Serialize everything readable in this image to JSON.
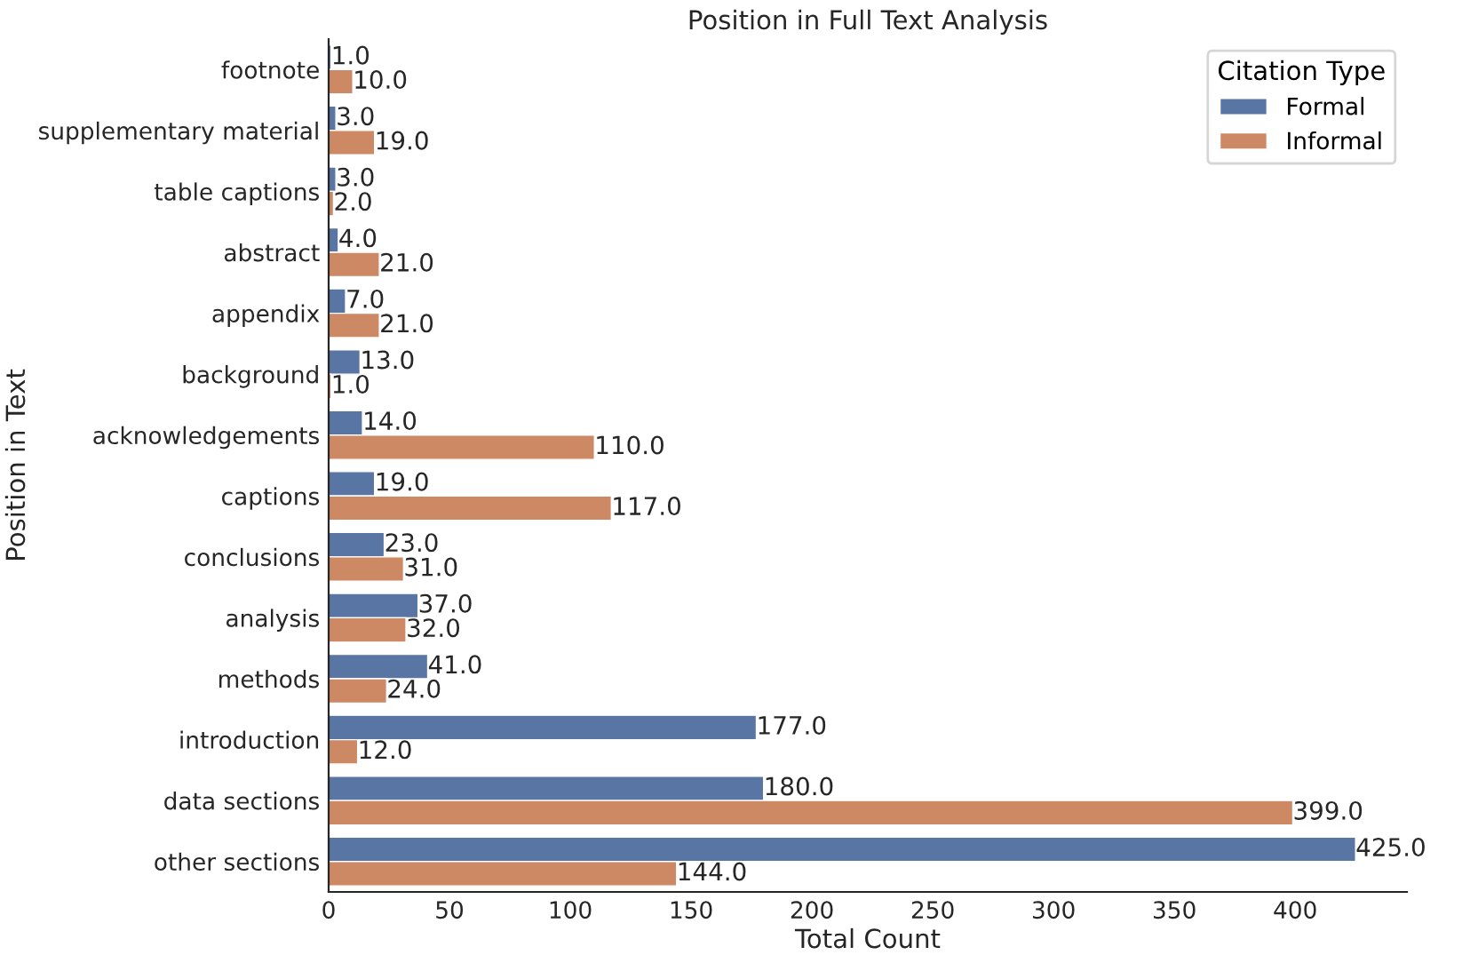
{
  "chart_data": {
    "type": "bar",
    "orientation": "horizontal",
    "title": "Position in Full Text Analysis",
    "xlabel": "Total Count",
    "ylabel": "Position in Text",
    "legend_title": "Citation Type",
    "legend": "top right",
    "grid": false,
    "categories": [
      "footnote",
      "supplementary material",
      "table captions",
      "abstract",
      "appendix",
      "background",
      "acknowledgements",
      "captions",
      "conclusions",
      "analysis",
      "methods",
      "introduction",
      "data sections",
      "other sections"
    ],
    "series": [
      {
        "name": "Formal",
        "color": "#5975a4",
        "values": [
          1,
          3,
          3,
          4,
          7,
          13,
          14,
          19,
          23,
          37,
          41,
          177,
          180,
          425
        ],
        "value_labels": [
          "1.0",
          "3.0",
          "3.0",
          "4.0",
          "7.0",
          "13.0",
          "14.0",
          "19.0",
          "23.0",
          "37.0",
          "41.0",
          "177.0",
          "180.0",
          "425.0"
        ]
      },
      {
        "name": "Informal",
        "color": "#cc8963",
        "values": [
          10,
          19,
          2,
          21,
          21,
          1,
          110,
          117,
          31,
          32,
          24,
          12,
          399,
          144
        ],
        "value_labels": [
          "10.0",
          "19.0",
          "2.0",
          "21.0",
          "21.0",
          "1.0",
          "110.0",
          "117.0",
          "31.0",
          "32.0",
          "24.0",
          "12.0",
          "399.0",
          "144.0"
        ]
      }
    ],
    "xlim": [
      0,
      446.25
    ],
    "xticks": [
      0,
      50,
      100,
      150,
      200,
      250,
      300,
      350,
      400
    ]
  }
}
